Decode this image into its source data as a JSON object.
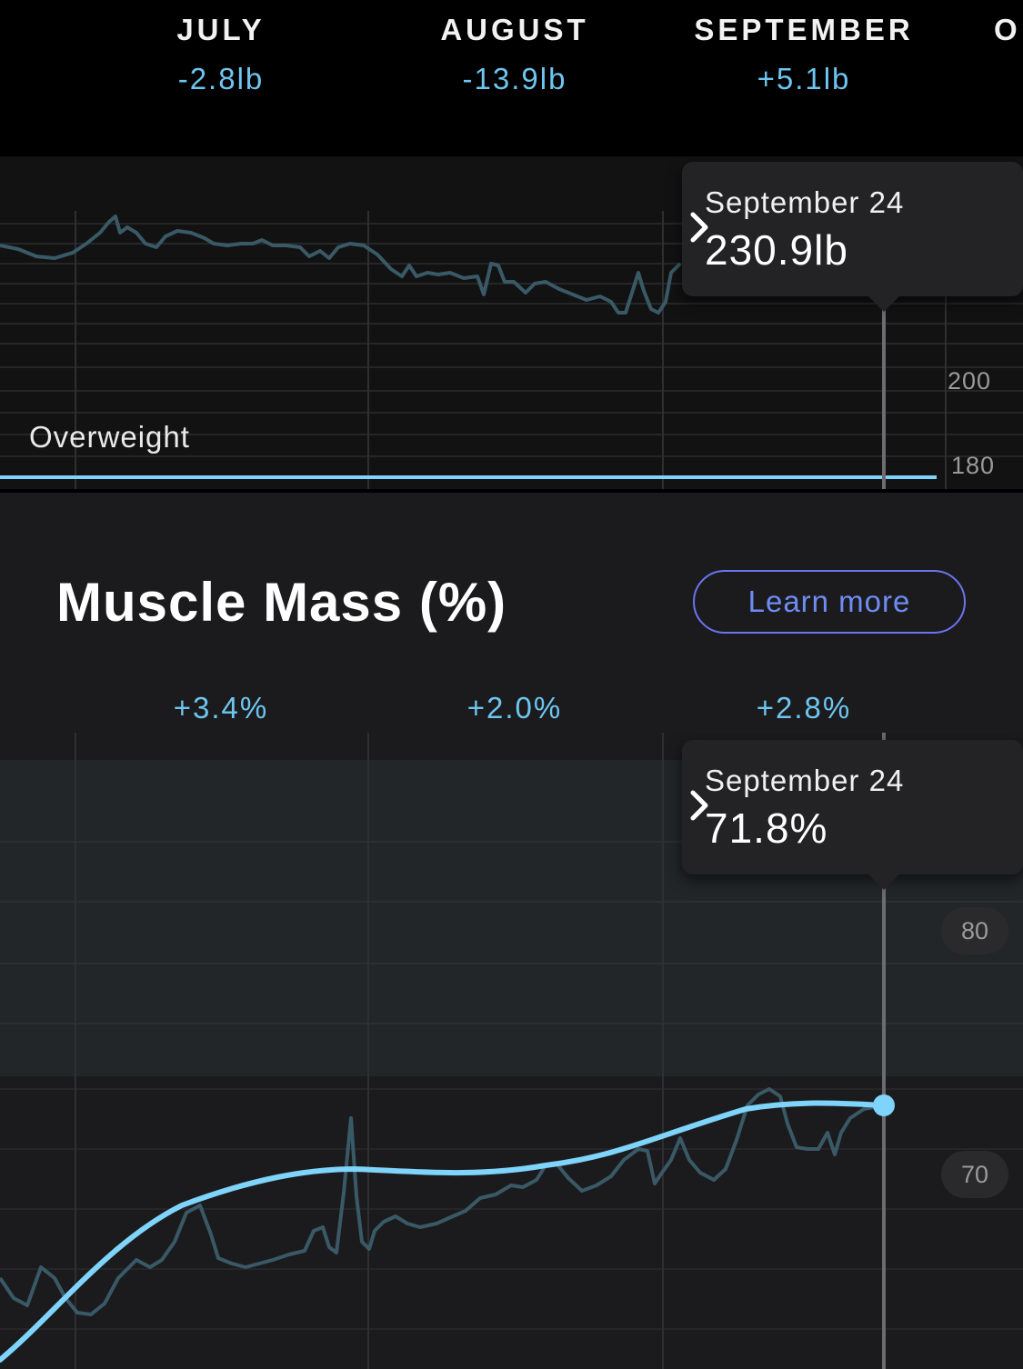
{
  "weight": {
    "months": [
      {
        "name": "JULY",
        "delta": "-2.8lb"
      },
      {
        "name": "AUGUST",
        "delta": "-13.9lb"
      },
      {
        "name": "SEPTEMBER",
        "delta": "+5.1lb"
      },
      {
        "name": "O",
        "delta": ""
      }
    ],
    "axis_labels": [
      "200",
      "180"
    ],
    "zone_label": "Overweight",
    "tooltip": {
      "date": "September 24",
      "value": "230.9lb"
    }
  },
  "muscle": {
    "title": "Muscle Mass (%)",
    "learn_more_label": "Learn more",
    "month_deltas": [
      "+3.4%",
      "+2.0%",
      "+2.8%"
    ],
    "axis_labels": [
      "80",
      "70"
    ],
    "tooltip": {
      "date": "September 24",
      "value": "71.8%"
    }
  },
  "colors": {
    "accent": "#6ec6f0",
    "button_border": "#6b74f0",
    "raw_line": "#3a5967",
    "trend_line": "#7fd4fb"
  },
  "icons": {
    "tooltip_arrow": "chevron-right-icon"
  }
}
